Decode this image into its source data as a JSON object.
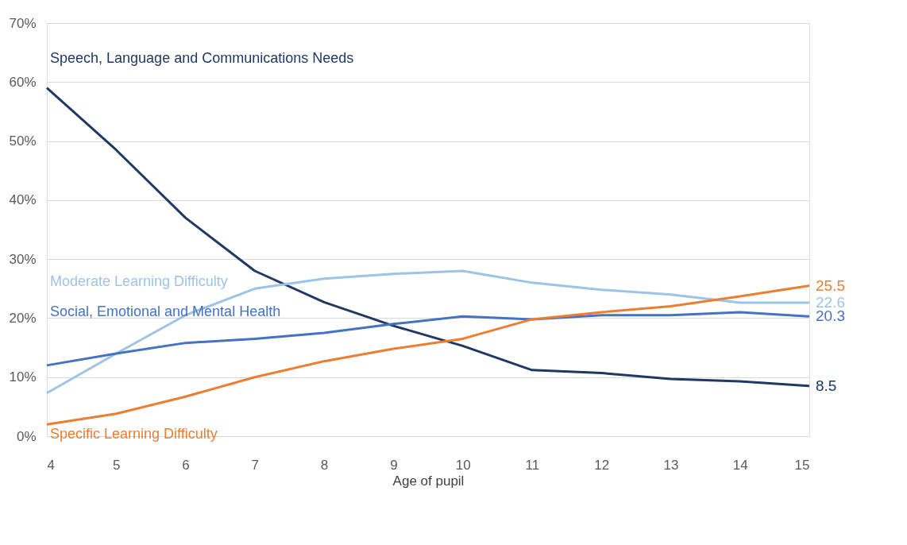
{
  "chart_data": {
    "type": "line",
    "xlabel": "Age of pupil",
    "x": [
      4,
      5,
      6,
      7,
      8,
      9,
      10,
      11,
      12,
      13,
      14,
      15
    ],
    "xlim": [
      4,
      15
    ],
    "xticks": [
      4,
      5,
      6,
      7,
      8,
      9,
      10,
      11,
      12,
      13,
      14,
      15
    ],
    "ylim": [
      0,
      70
    ],
    "yticks": [
      {
        "value": 0,
        "label": "0%"
      },
      {
        "value": 10,
        "label": "10%"
      },
      {
        "value": 20,
        "label": "20%"
      },
      {
        "value": 30,
        "label": "30%"
      },
      {
        "value": 40,
        "label": "40%"
      },
      {
        "value": 50,
        "label": "50%"
      },
      {
        "value": 60,
        "label": "60%"
      },
      {
        "value": 70,
        "label": "70%"
      }
    ],
    "grid": "y",
    "marker": "none",
    "line_style": "solid",
    "series": [
      {
        "name": "Speech, Language and Communications Needs",
        "color": "#203864",
        "values": [
          59,
          48.5,
          37,
          28,
          22.7,
          18.7,
          15.3,
          11.2,
          10.7,
          9.7,
          9.3,
          8.5
        ],
        "value_labels": [
          null,
          null,
          null,
          null,
          null,
          null,
          null,
          null,
          null,
          null,
          null,
          "8.5"
        ]
      },
      {
        "name": "Moderate Learning Difficulty",
        "color": "#9dc3e6",
        "values": [
          7.3,
          14,
          20.5,
          25,
          26.7,
          27.5,
          28,
          26,
          24.8,
          24,
          22.6,
          22.6
        ],
        "value_labels": [
          null,
          null,
          null,
          null,
          null,
          null,
          null,
          null,
          null,
          null,
          null,
          "22.6"
        ]
      },
      {
        "name": "Social, Emotional and Mental Health",
        "color": "#4472c4",
        "values": [
          12,
          14,
          15.8,
          16.5,
          17.5,
          19,
          20.3,
          19.8,
          20.5,
          20.5,
          21,
          20.3
        ],
        "value_labels": [
          null,
          null,
          null,
          null,
          null,
          null,
          null,
          null,
          null,
          null,
          null,
          "20.3"
        ]
      },
      {
        "name": "Specific Learning Difficulty",
        "color": "#ed7d31",
        "values": [
          2,
          3.8,
          6.7,
          10,
          12.7,
          14.8,
          16.5,
          19.8,
          21,
          22,
          23.7,
          25.5
        ],
        "value_labels": [
          null,
          null,
          null,
          null,
          null,
          null,
          null,
          null,
          null,
          null,
          null,
          "25.5"
        ]
      }
    ]
  }
}
